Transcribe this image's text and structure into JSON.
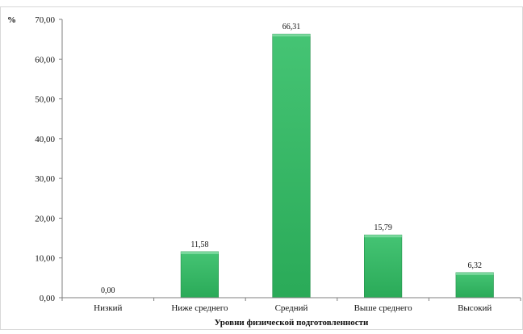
{
  "chart_data": {
    "type": "bar",
    "title": "",
    "ylabel": "%",
    "xlabel": "Уровни физической подготовленности",
    "categories": [
      "Низкий",
      "Ниже среднего",
      "Средний",
      "Выше среднего",
      "Высокий"
    ],
    "values": [
      0.0,
      11.58,
      66.31,
      15.79,
      6.32
    ],
    "value_labels": [
      "0,00",
      "11,58",
      "66,31",
      "15,79",
      "6,32"
    ],
    "ylim": [
      0,
      70
    ],
    "yticks": [
      "0,00",
      "10,00",
      "20,00",
      "30,00",
      "40,00",
      "50,00",
      "60,00",
      "70,00"
    ],
    "bar_color": "#2eb35f",
    "grid": false,
    "legend": "none"
  }
}
